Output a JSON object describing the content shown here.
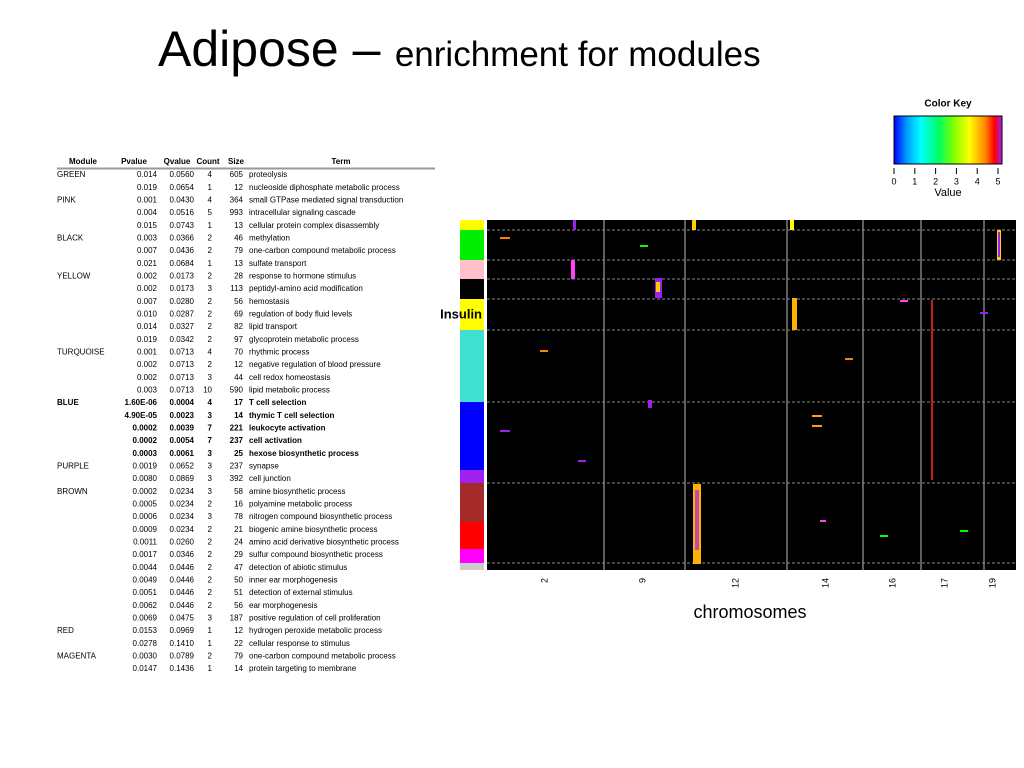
{
  "title_main": "Adipose –",
  "title_sub": "enrichment for modules",
  "table": {
    "header": [
      "Module",
      "Pvalue",
      "Qvalue",
      "Count",
      "Size",
      "Term"
    ],
    "rows": [
      {
        "cells": [
          "GREEN",
          "0.014",
          "0.0560",
          "4",
          "605",
          "proteolysis"
        ]
      },
      {
        "cells": [
          null,
          "0.019",
          "0.0654",
          "1",
          "12",
          "nucleoside diphosphate metabolic process"
        ]
      },
      {
        "cells": [
          "PINK",
          "0.001",
          "0.0430",
          "4",
          "364",
          "small GTPase mediated signal transduction"
        ]
      },
      {
        "cells": [
          null,
          "0.004",
          "0.0516",
          "5",
          "993",
          "intracellular signaling cascade"
        ]
      },
      {
        "cells": [
          null,
          "0.015",
          "0.0743",
          "1",
          "13",
          "cellular protein complex disassembly"
        ]
      },
      {
        "cells": [
          "BLACK",
          "0.003",
          "0.0366",
          "2",
          "46",
          "methylation"
        ]
      },
      {
        "cells": [
          null,
          "0.007",
          "0.0436",
          "2",
          "79",
          "one-carbon compound metabolic process"
        ]
      },
      {
        "cells": [
          null,
          "0.021",
          "0.0684",
          "1",
          "13",
          "sulfate transport"
        ]
      },
      {
        "cells": [
          "YELLOW",
          "0.002",
          "0.0173",
          "2",
          "28",
          "response to hormone stimulus"
        ]
      },
      {
        "cells": [
          null,
          "0.002",
          "0.0173",
          "3",
          "113",
          "peptidyl-amino acid modification"
        ]
      },
      {
        "cells": [
          null,
          "0.007",
          "0.0280",
          "2",
          "56",
          "hemostasis"
        ]
      },
      {
        "cells": [
          null,
          "0.010",
          "0.0287",
          "2",
          "69",
          "regulation of body fluid levels"
        ]
      },
      {
        "cells": [
          null,
          "0.014",
          "0.0327",
          "2",
          "82",
          "lipid transport"
        ]
      },
      {
        "cells": [
          null,
          "0.019",
          "0.0342",
          "2",
          "97",
          "glycoprotein metabolic process"
        ]
      },
      {
        "cells": [
          "TURQUOISE",
          "0.001",
          "0.0713",
          "4",
          "70",
          "rhythmic process"
        ]
      },
      {
        "cells": [
          null,
          "0.002",
          "0.0713",
          "2",
          "12",
          "negative regulation of blood pressure"
        ]
      },
      {
        "cells": [
          null,
          "0.002",
          "0.0713",
          "3",
          "44",
          "cell redox homeostasis"
        ]
      },
      {
        "cells": [
          null,
          "0.003",
          "0.0713",
          "10",
          "590",
          "lipid metabolic process"
        ]
      },
      {
        "cells": [
          "BLUE",
          "1.60E-06",
          "0.0004",
          "4",
          "17",
          "T cell selection"
        ],
        "bold": true
      },
      {
        "cells": [
          null,
          "4.90E-05",
          "0.0023",
          "3",
          "14",
          "thymic T cell selection"
        ],
        "bold": true
      },
      {
        "cells": [
          null,
          "0.0002",
          "0.0039",
          "7",
          "221",
          "leukocyte activation"
        ],
        "bold": true
      },
      {
        "cells": [
          null,
          "0.0002",
          "0.0054",
          "7",
          "237",
          "cell activation"
        ],
        "bold": true
      },
      {
        "cells": [
          null,
          "0.0003",
          "0.0061",
          "3",
          "25",
          "hexose biosynthetic process"
        ],
        "bold": true
      },
      {
        "cells": [
          "PURPLE",
          "0.0019",
          "0.0652",
          "3",
          "237",
          "synapse"
        ]
      },
      {
        "cells": [
          null,
          "0.0080",
          "0.0869",
          "3",
          "392",
          "cell junction"
        ]
      },
      {
        "cells": [
          "BROWN",
          "0.0002",
          "0.0234",
          "3",
          "58",
          "amine biosynthetic process"
        ]
      },
      {
        "cells": [
          null,
          "0.0005",
          "0.0234",
          "2",
          "16",
          "polyamine metabolic process"
        ]
      },
      {
        "cells": [
          null,
          "0.0006",
          "0.0234",
          "3",
          "78",
          "nitrogen compound biosynthetic process"
        ]
      },
      {
        "cells": [
          null,
          "0.0009",
          "0.0234",
          "2",
          "21",
          "biogenic amine biosynthetic process"
        ]
      },
      {
        "cells": [
          null,
          "0.0011",
          "0.0260",
          "2",
          "24",
          "amino acid derivative biosynthetic process"
        ]
      },
      {
        "cells": [
          null,
          "0.0017",
          "0.0346",
          "2",
          "29",
          "sulfur compound biosynthetic process"
        ]
      },
      {
        "cells": [
          null,
          "0.0044",
          "0.0446",
          "2",
          "47",
          "detection of abiotic stimulus"
        ]
      },
      {
        "cells": [
          null,
          "0.0049",
          "0.0446",
          "2",
          "50",
          "inner ear morphogenesis"
        ]
      },
      {
        "cells": [
          null,
          "0.0051",
          "0.0446",
          "2",
          "51",
          "detection of external stimulus"
        ]
      },
      {
        "cells": [
          null,
          "0.0062",
          "0.0446",
          "2",
          "56",
          "ear morphogenesis"
        ]
      },
      {
        "cells": [
          null,
          "0.0069",
          "0.0475",
          "3",
          "187",
          "positive regulation of cell proliferation"
        ]
      },
      {
        "cells": [
          "RED",
          "0.0153",
          "0.0969",
          "1",
          "12",
          "hydrogen peroxide metabolic process"
        ]
      },
      {
        "cells": [
          null,
          "0.0278",
          "0.1410",
          "1",
          "22",
          "cellular response to stimulus"
        ]
      },
      {
        "cells": [
          "MAGENTA",
          "0.0030",
          "0.0789",
          "2",
          "79",
          "one-carbon compound metabolic process"
        ]
      },
      {
        "cells": [
          null,
          "0.0147",
          "0.1436",
          "1",
          "14",
          "protein targeting to membrane"
        ]
      }
    ]
  },
  "color_key": {
    "title": "Color Key",
    "label": "Value",
    "lim": [
      0,
      5
    ],
    "ticks": [
      0,
      1,
      2,
      3,
      4,
      5
    ]
  },
  "heatmap": {
    "row_label": "Insulin",
    "x_label": "chromosomes",
    "chromosomes": [
      "2",
      "9",
      "12",
      "14",
      "16",
      "17",
      "19"
    ]
  }
}
